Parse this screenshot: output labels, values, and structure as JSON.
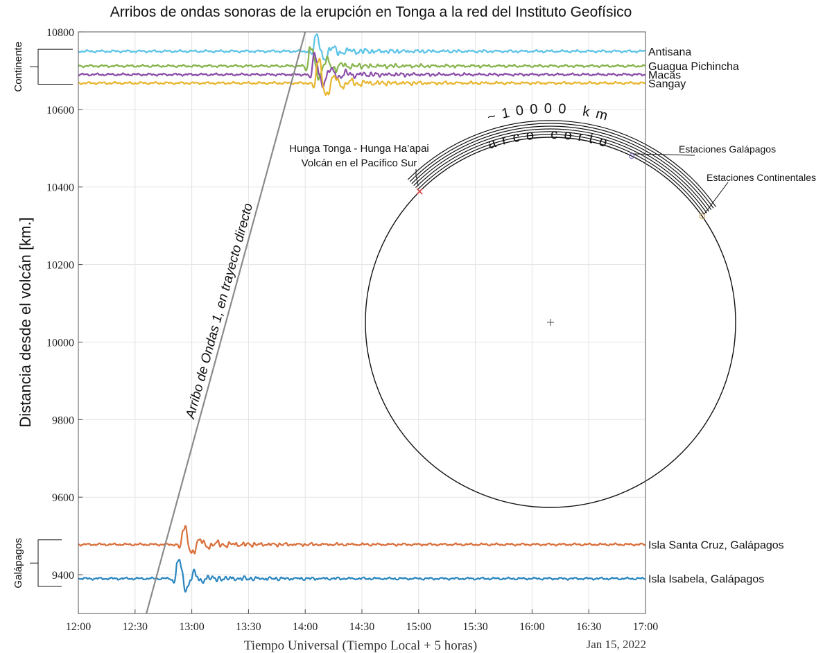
{
  "chart_data": {
    "type": "line",
    "title": "Arribos de ondas sonoras de la erupción en Tonga a la red del Instituto Geofísico",
    "xlabel": "Tiempo Universal (Tiempo Local + 5 horas)",
    "ylabel": "Distancia desde el volcán [km.]",
    "date_label": "Jan 15, 2022",
    "xlim": [
      "12:00",
      "17:00"
    ],
    "ylim": [
      9300,
      10800
    ],
    "x_ticks": [
      "12:00",
      "12:30",
      "13:00",
      "13:30",
      "14:00",
      "14:30",
      "15:00",
      "15:30",
      "16:00",
      "16:30",
      "17:00"
    ],
    "y_ticks": [
      9400,
      9600,
      9800,
      10000,
      10200,
      10400,
      10600,
      10800
    ],
    "grid": true,
    "series": [
      {
        "name": "Antisana",
        "color": "#5bc3e6",
        "baseline_km": 10750,
        "arrival": "14:05",
        "amplitude_km": 50
      },
      {
        "name": "Guagua Pichincha",
        "color": "#86b44a",
        "baseline_km": 10712,
        "arrival": "14:02",
        "amplitude_km": 60
      },
      {
        "name": "Macas",
        "color": "#8b4ea8",
        "baseline_km": 10690,
        "arrival": "14:04",
        "amplitude_km": 60
      },
      {
        "name": "Sangay",
        "color": "#e8b62e",
        "baseline_km": 10668,
        "arrival": "14:06",
        "amplitude_km": 75
      },
      {
        "name": "Isla Santa Cruz, Galápagos",
        "color": "#d9703c",
        "baseline_km": 9478,
        "arrival": "12:55",
        "amplitude_km": 55
      },
      {
        "name": "Isla Isabela, Galápagos",
        "color": "#2b86c0",
        "baseline_km": 9390,
        "arrival": "12:52",
        "amplitude_km": 60
      }
    ],
    "groups": [
      {
        "label": "Continente",
        "y_range_km": [
          10665,
          10755
        ]
      },
      {
        "label": "Galápagos",
        "y_range_km": [
          9370,
          9490
        ]
      }
    ],
    "arrival_line": {
      "label": "Arribo de Ondas 1, en trayecto directo",
      "color": "#8a8a8a",
      "start": {
        "time": "12:36",
        "km": 9300
      },
      "end": {
        "time": "14:00",
        "km": 10800
      }
    },
    "inset": {
      "arc_label_distance": "~10000 km",
      "arc_label_type": "arco corto",
      "volcano_label_line1": "Hunga Tonga - Hunga Ha’apai",
      "volcano_label_line2": "Volcán en el Pacífico Sur",
      "galapagos_label": "Estaciones Galápagos",
      "continental_label": "Estaciones Continentales",
      "volcano_marker_color": "#d43c3c",
      "galapagos_marker_color": "#7a70c8",
      "continental_marker_color": "#c8a45a"
    }
  }
}
